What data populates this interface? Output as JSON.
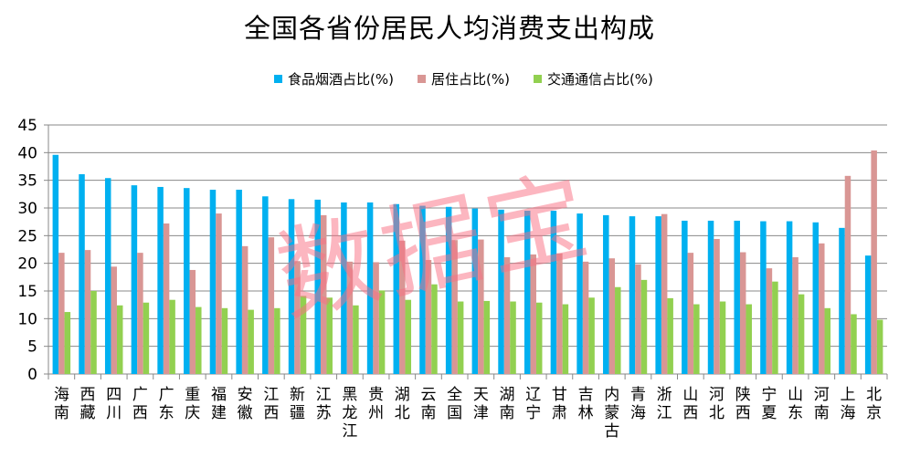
{
  "chart_data": {
    "type": "bar",
    "title": "全国各省份居民人均消费支出构成",
    "xlabel": "",
    "ylabel": "",
    "ylim": [
      0,
      45
    ],
    "yticks": [
      0,
      5,
      10,
      15,
      20,
      25,
      30,
      35,
      40,
      45
    ],
    "grid": true,
    "legend_position": "top",
    "categories": [
      "海南",
      "西藏",
      "四川",
      "广西",
      "广东",
      "重庆",
      "福建",
      "安徽",
      "江西",
      "新疆",
      "江苏",
      "黑龙江",
      "贵州",
      "湖北",
      "云南",
      "全国",
      "天津",
      "湖南",
      "辽宁",
      "甘肃",
      "吉林",
      "内蒙古",
      "青海",
      "浙江",
      "山西",
      "河北",
      "陕西",
      "宁夏",
      "山东",
      "河南",
      "上海",
      "北京"
    ],
    "series": [
      {
        "name": "食品烟酒占比(%)",
        "color": "#00B0F0",
        "values": [
          39.6,
          36.1,
          35.4,
          34.1,
          33.8,
          33.6,
          33.3,
          33.3,
          32.1,
          31.6,
          31.5,
          31.0,
          31.0,
          30.7,
          30.4,
          30.2,
          29.9,
          29.7,
          29.5,
          29.5,
          29.0,
          28.7,
          28.5,
          28.5,
          27.7,
          27.7,
          27.7,
          27.6,
          27.6,
          27.4,
          26.4,
          21.4
        ]
      },
      {
        "name": "居住占比(%)",
        "color": "#D99694",
        "values": [
          21.9,
          22.4,
          19.4,
          21.9,
          27.2,
          18.8,
          29.0,
          23.1,
          24.7,
          20.4,
          28.7,
          20.3,
          20.2,
          24.1,
          20.6,
          24.2,
          24.3,
          21.1,
          21.6,
          21.8,
          20.3,
          20.9,
          19.8,
          28.9,
          21.9,
          24.4,
          22.0,
          19.1,
          21.1,
          23.6,
          35.8,
          40.4
        ]
      },
      {
        "name": "交通通信占比(%)",
        "color": "#92D050",
        "values": [
          11.2,
          15.0,
          12.4,
          12.9,
          13.4,
          12.1,
          11.9,
          11.6,
          11.9,
          14.1,
          13.8,
          12.4,
          15.1,
          13.4,
          16.2,
          13.1,
          13.2,
          13.1,
          12.9,
          12.6,
          13.8,
          15.7,
          17.0,
          13.7,
          12.6,
          13.1,
          12.6,
          16.7,
          14.4,
          11.9,
          10.8,
          9.8
        ]
      }
    ]
  },
  "watermark": "数据宝"
}
